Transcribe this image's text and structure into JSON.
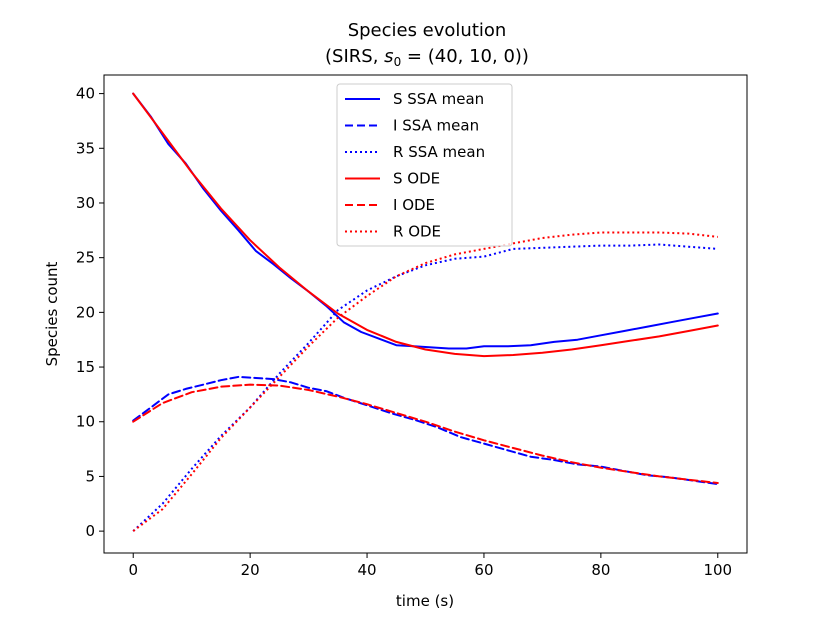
{
  "chart_data": {
    "type": "line",
    "title_line1": "Species evolution",
    "title_line2_prefix": "(SIRS, ",
    "title_line2_var": "s",
    "title_line2_sub": "0",
    "title_line2_suffix": " = (40, 10, 0))",
    "xlabel": "time (s)",
    "ylabel": "Species count",
    "xlim": [
      -5,
      105
    ],
    "ylim": [
      -2,
      41.7
    ],
    "xticks": [
      0,
      20,
      40,
      60,
      80,
      100
    ],
    "yticks": [
      0,
      5,
      10,
      15,
      20,
      25,
      30,
      35,
      40
    ],
    "legend_position": "upper center",
    "series": [
      {
        "name": "S SSA mean",
        "color": "#0000ff",
        "dash": "solid",
        "x": [
          0,
          3,
          6,
          9,
          12,
          15,
          18,
          21,
          24,
          27,
          30,
          33,
          36,
          39,
          42,
          45,
          48,
          51,
          54,
          57,
          60,
          64,
          68,
          72,
          76,
          80,
          84,
          88,
          92,
          96,
          100
        ],
        "y": [
          40.0,
          37.9,
          35.4,
          33.6,
          31.3,
          29.3,
          27.5,
          25.6,
          24.4,
          23.1,
          21.9,
          20.6,
          19.1,
          18.2,
          17.6,
          17.0,
          16.9,
          16.8,
          16.7,
          16.7,
          16.9,
          16.9,
          17.0,
          17.3,
          17.5,
          17.9,
          18.3,
          18.7,
          19.1,
          19.5,
          19.9
        ]
      },
      {
        "name": "I SSA mean",
        "color": "#0000ff",
        "dash": "dashed",
        "x": [
          0,
          3,
          6,
          9,
          12,
          15,
          18,
          21,
          24,
          27,
          30,
          33,
          36,
          40,
          44,
          48,
          52,
          56,
          60,
          64,
          68,
          72,
          76,
          80,
          84,
          88,
          92,
          96,
          100
        ],
        "y": [
          10.1,
          11.3,
          12.5,
          13.0,
          13.4,
          13.8,
          14.1,
          14.0,
          13.9,
          13.6,
          13.1,
          12.8,
          12.2,
          11.5,
          10.8,
          10.2,
          9.5,
          8.6,
          8.0,
          7.4,
          6.8,
          6.5,
          6.1,
          5.9,
          5.5,
          5.1,
          4.9,
          4.6,
          4.3
        ]
      },
      {
        "name": "R SSA mean",
        "color": "#0000ff",
        "dash": "dotted",
        "x": [
          0,
          5,
          10,
          15,
          20,
          25,
          30,
          35,
          40,
          45,
          50,
          55,
          60,
          65,
          70,
          75,
          80,
          85,
          90,
          95,
          100
        ],
        "y": [
          0.0,
          2.5,
          5.7,
          8.7,
          11.3,
          14.4,
          17.2,
          20.2,
          22.0,
          23.3,
          24.3,
          24.9,
          25.1,
          25.8,
          25.9,
          26.0,
          26.1,
          26.1,
          26.2,
          26.0,
          25.8
        ]
      },
      {
        "name": "S ODE",
        "color": "#ff0000",
        "dash": "solid",
        "x": [
          0,
          5,
          10,
          15,
          20,
          25,
          30,
          35,
          40,
          45,
          50,
          55,
          60,
          65,
          70,
          75,
          80,
          85,
          90,
          95,
          100
        ],
        "y": [
          40.0,
          36.4,
          32.8,
          29.5,
          26.6,
          24.1,
          21.9,
          19.9,
          18.4,
          17.3,
          16.6,
          16.2,
          16.0,
          16.1,
          16.3,
          16.6,
          17.0,
          17.4,
          17.8,
          18.3,
          18.8
        ]
      },
      {
        "name": "I ODE",
        "color": "#ff0000",
        "dash": "dashed",
        "x": [
          0,
          5,
          10,
          15,
          20,
          25,
          30,
          35,
          40,
          45,
          50,
          55,
          60,
          65,
          70,
          75,
          80,
          85,
          90,
          95,
          100
        ],
        "y": [
          10.0,
          11.7,
          12.7,
          13.2,
          13.4,
          13.3,
          12.9,
          12.3,
          11.6,
          10.8,
          10.0,
          9.1,
          8.3,
          7.6,
          6.9,
          6.3,
          5.8,
          5.4,
          5.0,
          4.7,
          4.4
        ]
      },
      {
        "name": "R ODE",
        "color": "#ff0000",
        "dash": "dotted",
        "x": [
          0,
          5,
          10,
          15,
          20,
          25,
          30,
          35,
          40,
          45,
          50,
          55,
          60,
          65,
          70,
          75,
          80,
          85,
          90,
          95,
          100
        ],
        "y": [
          0.0,
          2.0,
          5.2,
          8.5,
          11.3,
          14.1,
          16.9,
          19.5,
          21.5,
          23.3,
          24.5,
          25.3,
          25.8,
          26.3,
          26.8,
          27.1,
          27.3,
          27.3,
          27.3,
          27.2,
          26.9
        ]
      }
    ]
  }
}
